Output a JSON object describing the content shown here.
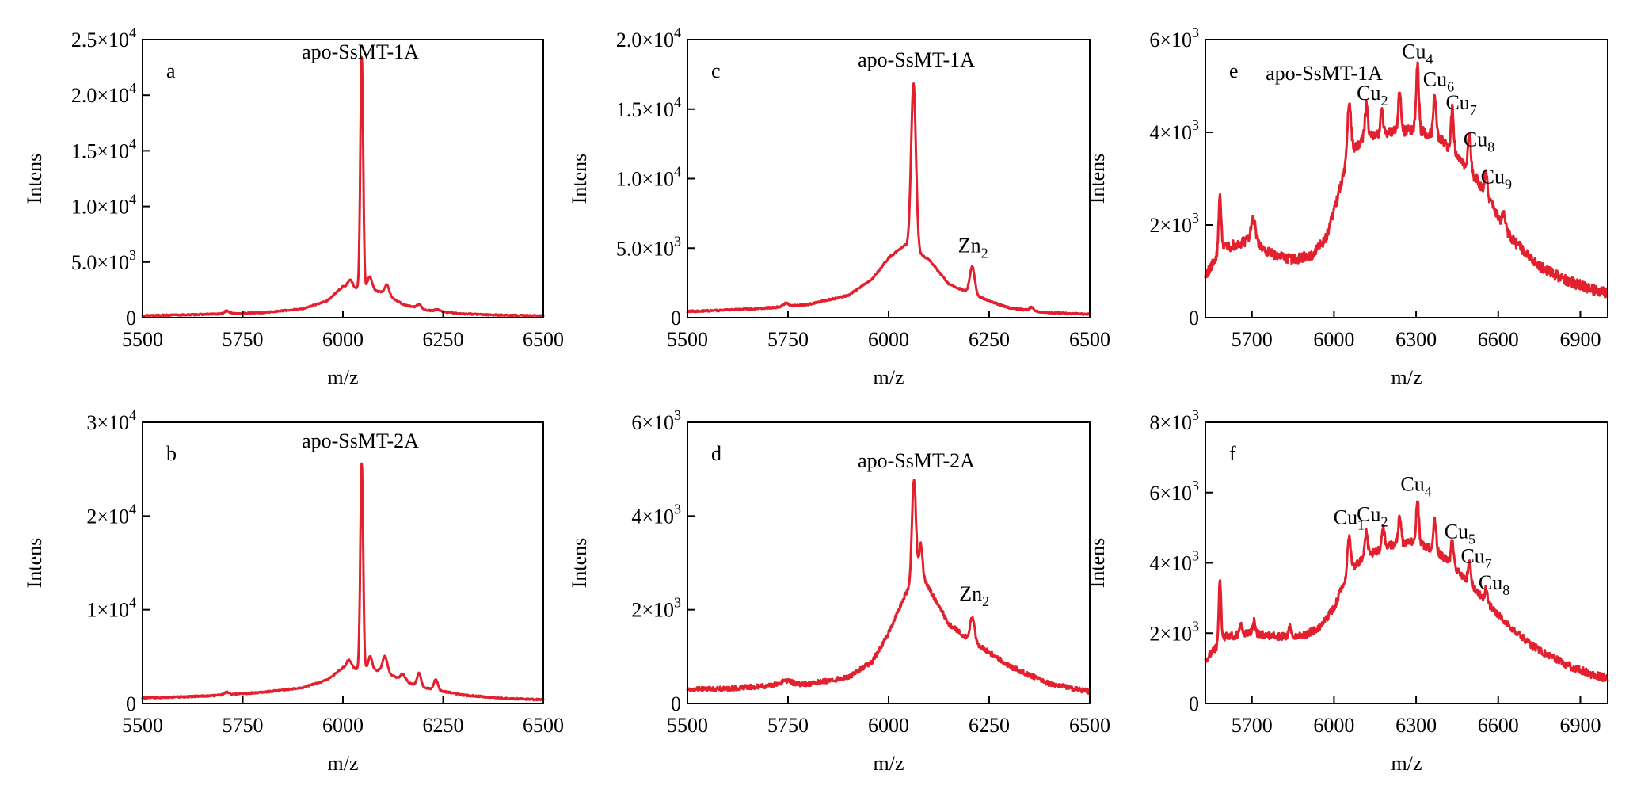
{
  "colors": {
    "series": "#e3202e",
    "axis": "#000000"
  },
  "chart_data": [
    {
      "panel": "a",
      "type": "line",
      "title": "apo-SsMT-1A",
      "xlabel": "m/z",
      "ylabel": "Intens",
      "xlim": [
        5500,
        6500
      ],
      "ylim": [
        0,
        25000
      ],
      "xticks": [
        5500,
        5750,
        6000,
        6250,
        6500
      ],
      "yticks": [
        {
          "value": 0,
          "label": "0"
        },
        {
          "value": 5000,
          "label": "5.0×10",
          "exp": "3"
        },
        {
          "value": 10000,
          "label": "1.0×10",
          "exp": "4"
        },
        {
          "value": 15000,
          "label": "1.5×10",
          "exp": "4"
        },
        {
          "value": 20000,
          "label": "2.0×10",
          "exp": "4"
        },
        {
          "value": 25000,
          "label": "2.5×10",
          "exp": "4"
        }
      ],
      "baseline": [
        [
          5500,
          200
        ],
        [
          5600,
          250
        ],
        [
          5700,
          350
        ],
        [
          5800,
          450
        ],
        [
          5900,
          800
        ],
        [
          5960,
          1500
        ],
        [
          6000,
          2800
        ],
        [
          6100,
          2300
        ],
        [
          6150,
          1200
        ],
        [
          6200,
          700
        ],
        [
          6300,
          350
        ],
        [
          6400,
          220
        ],
        [
          6500,
          180
        ]
      ],
      "peaks": [
        {
          "x": 5710,
          "h": 250,
          "w": 6
        },
        {
          "x": 6018,
          "h": 700,
          "w": 6
        },
        {
          "x": 6047,
          "h": 21000,
          "w": 3.5
        },
        {
          "x": 6067,
          "h": 1200,
          "w": 6
        },
        {
          "x": 6110,
          "h": 900,
          "w": 5
        },
        {
          "x": 6190,
          "h": 400,
          "w": 6
        },
        {
          "x": 6235,
          "h": 150,
          "w": 6
        }
      ],
      "noise": 60,
      "annotations": []
    },
    {
      "panel": "b",
      "type": "line",
      "title": "apo-SsMT-2A",
      "xlabel": "m/z",
      "ylabel": "Intens",
      "xlim": [
        5500,
        6500
      ],
      "ylim": [
        0,
        30000
      ],
      "xticks": [
        5500,
        5750,
        6000,
        6250,
        6500
      ],
      "yticks": [
        {
          "value": 0,
          "label": "0"
        },
        {
          "value": 10000,
          "label": "1×10",
          "exp": "4"
        },
        {
          "value": 20000,
          "label": "2×10",
          "exp": "4"
        },
        {
          "value": 30000,
          "label": "3×10",
          "exp": "4"
        }
      ],
      "baseline": [
        [
          5500,
          600
        ],
        [
          5600,
          700
        ],
        [
          5700,
          900
        ],
        [
          5800,
          1200
        ],
        [
          5900,
          1700
        ],
        [
          5960,
          2500
        ],
        [
          6000,
          3800
        ],
        [
          6100,
          3500
        ],
        [
          6150,
          2400
        ],
        [
          6200,
          1700
        ],
        [
          6300,
          900
        ],
        [
          6400,
          550
        ],
        [
          6500,
          400
        ]
      ],
      "peaks": [
        {
          "x": 5710,
          "h": 300,
          "w": 6
        },
        {
          "x": 6015,
          "h": 900,
          "w": 6
        },
        {
          "x": 6047,
          "h": 22000,
          "w": 3.5
        },
        {
          "x": 6068,
          "h": 1400,
          "w": 5
        },
        {
          "x": 6105,
          "h": 1600,
          "w": 6
        },
        {
          "x": 6150,
          "h": 700,
          "w": 6
        },
        {
          "x": 6190,
          "h": 1400,
          "w": 5
        },
        {
          "x": 6232,
          "h": 1100,
          "w": 5
        }
      ],
      "noise": 80,
      "annotations": []
    },
    {
      "panel": "c",
      "type": "line",
      "title": "apo-SsMT-1A",
      "xlabel": "m/z",
      "ylabel": "Intens",
      "xlim": [
        5500,
        6500
      ],
      "ylim": [
        0,
        20000
      ],
      "xticks": [
        5500,
        5750,
        6000,
        6250,
        6500
      ],
      "yticks": [
        {
          "value": 0,
          "label": "0"
        },
        {
          "value": 5000,
          "label": "5.0×10",
          "exp": "3"
        },
        {
          "value": 10000,
          "label": "1.0×10",
          "exp": "4"
        },
        {
          "value": 15000,
          "label": "1.5×10",
          "exp": "4"
        },
        {
          "value": 20000,
          "label": "2.0×10",
          "exp": "4"
        }
      ],
      "baseline": [
        [
          5500,
          450
        ],
        [
          5600,
          550
        ],
        [
          5700,
          700
        ],
        [
          5800,
          950
        ],
        [
          5900,
          1600
        ],
        [
          5960,
          2800
        ],
        [
          6000,
          4300
        ],
        [
          6040,
          5200
        ],
        [
          6100,
          4200
        ],
        [
          6150,
          2400
        ],
        [
          6200,
          1800
        ],
        [
          6260,
          1100
        ],
        [
          6300,
          700
        ],
        [
          6400,
          350
        ],
        [
          6500,
          250
        ]
      ],
      "peaks": [
        {
          "x": 5745,
          "h": 250,
          "w": 6
        },
        {
          "x": 6062,
          "h": 12000,
          "w": 6
        },
        {
          "x": 6208,
          "h": 2000,
          "w": 6
        },
        {
          "x": 6355,
          "h": 250,
          "w": 5
        }
      ],
      "noise": 60,
      "annotations": [
        {
          "x": 6210,
          "y": 4700,
          "text": "Zn",
          "sub": "2"
        }
      ]
    },
    {
      "panel": "d",
      "type": "line",
      "title": "apo-SsMT-2A",
      "xlabel": "m/z",
      "ylabel": "Intens",
      "xlim": [
        5500,
        6500
      ],
      "ylim": [
        0,
        6000
      ],
      "xticks": [
        5500,
        5750,
        6000,
        6250,
        6500
      ],
      "yticks": [
        {
          "value": 0,
          "label": "0"
        },
        {
          "value": 2000,
          "label": "2×10",
          "exp": "3"
        },
        {
          "value": 4000,
          "label": "4×10",
          "exp": "3"
        },
        {
          "value": 6000,
          "label": "6×10",
          "exp": "3"
        }
      ],
      "baseline": [
        [
          5500,
          300
        ],
        [
          5600,
          320
        ],
        [
          5700,
          380
        ],
        [
          5800,
          420
        ],
        [
          5900,
          550
        ],
        [
          5960,
          900
        ],
        [
          6000,
          1500
        ],
        [
          6040,
          2300
        ],
        [
          6080,
          2800
        ],
        [
          6110,
          2300
        ],
        [
          6150,
          1700
        ],
        [
          6200,
          1350
        ],
        [
          6240,
          1150
        ],
        [
          6300,
          800
        ],
        [
          6400,
          420
        ],
        [
          6500,
          250
        ]
      ],
      "peaks": [
        {
          "x": 5745,
          "h": 80,
          "w": 15
        },
        {
          "x": 6063,
          "h": 2200,
          "w": 5
        },
        {
          "x": 6080,
          "h": 600,
          "w": 4
        },
        {
          "x": 6208,
          "h": 500,
          "w": 6
        }
      ],
      "noise": 50,
      "annotations": [
        {
          "x": 6213,
          "y": 2200,
          "text": "Zn",
          "sub": "2"
        }
      ]
    },
    {
      "panel": "e",
      "type": "line",
      "title": "apo-SsMT-1A",
      "xlabel": "m/z",
      "ylabel": "Intens",
      "xlim": [
        5530,
        7000
      ],
      "ylim": [
        0,
        6000
      ],
      "xticks": [
        5700,
        6000,
        6300,
        6600,
        6900
      ],
      "yticks": [
        {
          "value": 0,
          "label": "0"
        },
        {
          "value": 2000,
          "label": "2×10",
          "exp": "3"
        },
        {
          "value": 4000,
          "label": "4×10",
          "exp": "3"
        },
        {
          "value": 6000,
          "label": "6×10",
          "exp": "3"
        }
      ],
      "baseline": [
        [
          5530,
          900
        ],
        [
          5560,
          1200
        ],
        [
          5600,
          1500
        ],
        [
          5650,
          1600
        ],
        [
          5700,
          1700
        ],
        [
          5760,
          1400
        ],
        [
          5850,
          1250
        ],
        [
          5920,
          1350
        ],
        [
          5970,
          1700
        ],
        [
          6000,
          2300
        ],
        [
          6030,
          3000
        ],
        [
          6060,
          3600
        ],
        [
          6120,
          3900
        ],
        [
          6200,
          4000
        ],
        [
          6300,
          4050
        ],
        [
          6380,
          3900
        ],
        [
          6450,
          3500
        ],
        [
          6520,
          3000
        ],
        [
          6580,
          2400
        ],
        [
          6650,
          1700
        ],
        [
          6750,
          1100
        ],
        [
          6850,
          800
        ],
        [
          6950,
          600
        ],
        [
          7000,
          520
        ]
      ],
      "peaks": [
        {
          "x": 5583,
          "h": 1200,
          "w": 5
        },
        {
          "x": 5705,
          "h": 450,
          "w": 8
        },
        {
          "x": 6055,
          "h": 1200,
          "w": 6
        },
        {
          "x": 6118,
          "h": 700,
          "w": 5
        },
        {
          "x": 6175,
          "h": 500,
          "w": 5
        },
        {
          "x": 6240,
          "h": 850,
          "w": 5
        },
        {
          "x": 6305,
          "h": 1400,
          "w": 5
        },
        {
          "x": 6368,
          "h": 900,
          "w": 5
        },
        {
          "x": 6432,
          "h": 900,
          "w": 5
        },
        {
          "x": 6495,
          "h": 800,
          "w": 5
        },
        {
          "x": 6556,
          "h": 500,
          "w": 5
        },
        {
          "x": 6620,
          "h": 250,
          "w": 5
        }
      ],
      "noise": 110,
      "annotations": [
        {
          "x": 6140,
          "y": 4700,
          "text": "Cu",
          "sub": "2"
        },
        {
          "x": 6305,
          "y": 5600,
          "text": "Cu",
          "sub": "4"
        },
        {
          "x": 6382,
          "y": 5000,
          "text": "Cu",
          "sub": "6"
        },
        {
          "x": 6465,
          "y": 4500,
          "text": "Cu",
          "sub": "7"
        },
        {
          "x": 6530,
          "y": 3700,
          "text": "Cu",
          "sub": "8"
        },
        {
          "x": 6593,
          "y": 2900,
          "text": "Cu",
          "sub": "9"
        }
      ]
    },
    {
      "panel": "f",
      "type": "line",
      "title": "",
      "xlabel": "m/z",
      "ylabel": "Intens",
      "xlim": [
        5530,
        7000
      ],
      "ylim": [
        0,
        8000
      ],
      "xticks": [
        5700,
        6000,
        6300,
        6600,
        6900
      ],
      "yticks": [
        {
          "value": 0,
          "label": "0"
        },
        {
          "value": 2000,
          "label": "2×10",
          "exp": "3"
        },
        {
          "value": 4000,
          "label": "4×10",
          "exp": "3"
        },
        {
          "value": 6000,
          "label": "6×10",
          "exp": "3"
        },
        {
          "value": 8000,
          "label": "8×10",
          "exp": "3"
        }
      ],
      "baseline": [
        [
          5530,
          1200
        ],
        [
          5560,
          1500
        ],
        [
          5600,
          1900
        ],
        [
          5700,
          2000
        ],
        [
          5800,
          1900
        ],
        [
          5900,
          1950
        ],
        [
          5950,
          2200
        ],
        [
          6000,
          2700
        ],
        [
          6030,
          3300
        ],
        [
          6060,
          3800
        ],
        [
          6120,
          4200
        ],
        [
          6200,
          4500
        ],
        [
          6300,
          4600
        ],
        [
          6380,
          4300
        ],
        [
          6450,
          3800
        ],
        [
          6520,
          3200
        ],
        [
          6580,
          2700
        ],
        [
          6650,
          2100
        ],
        [
          6750,
          1500
        ],
        [
          6850,
          1100
        ],
        [
          6950,
          800
        ],
        [
          7000,
          720
        ]
      ],
      "peaks": [
        {
          "x": 5583,
          "h": 1800,
          "w": 4
        },
        {
          "x": 5660,
          "h": 300,
          "w": 5
        },
        {
          "x": 5708,
          "h": 350,
          "w": 5
        },
        {
          "x": 5840,
          "h": 250,
          "w": 5
        },
        {
          "x": 6055,
          "h": 1000,
          "w": 6
        },
        {
          "x": 6118,
          "h": 700,
          "w": 5
        },
        {
          "x": 6180,
          "h": 550,
          "w": 5
        },
        {
          "x": 6240,
          "h": 800,
          "w": 5
        },
        {
          "x": 6305,
          "h": 1200,
          "w": 5
        },
        {
          "x": 6368,
          "h": 900,
          "w": 5
        },
        {
          "x": 6432,
          "h": 700,
          "w": 5
        },
        {
          "x": 6495,
          "h": 600,
          "w": 5
        },
        {
          "x": 6556,
          "h": 350,
          "w": 5
        }
      ],
      "noise": 110,
      "annotations": [
        {
          "x": 6055,
          "y": 5100,
          "text": "Cu",
          "sub": "1"
        },
        {
          "x": 6140,
          "y": 5200,
          "text": "Cu",
          "sub": "2"
        },
        {
          "x": 6300,
          "y": 6050,
          "text": "Cu",
          "sub": "4"
        },
        {
          "x": 6460,
          "y": 4700,
          "text": "Cu",
          "sub": "5"
        },
        {
          "x": 6520,
          "y": 4000,
          "text": "Cu",
          "sub": "7"
        },
        {
          "x": 6585,
          "y": 3250,
          "text": "Cu",
          "sub": "8"
        }
      ]
    }
  ],
  "panel_letters": [
    "a",
    "b",
    "c",
    "d",
    "e",
    "f"
  ]
}
